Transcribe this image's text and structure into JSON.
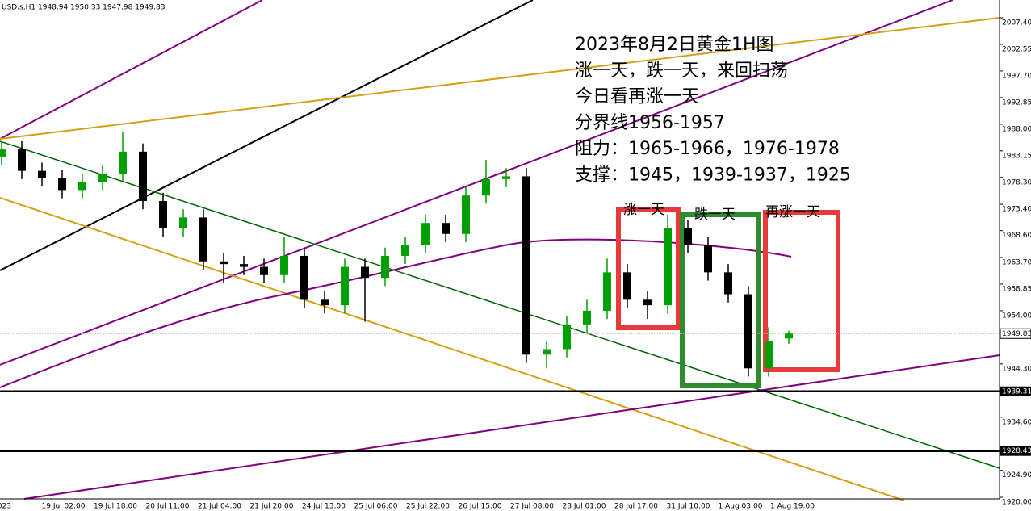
{
  "chart_data": {
    "type": "candlestick",
    "header": "USD.s,H1  1948.94 1950.33 1947.98 1949.83",
    "annotation": [
      "2023年8月2日黄金1H图",
      "涨一天，跌一天，来回扫荡",
      "今日看再涨一天",
      "分界线1956-1957",
      "阻力：1965-1966，1976-1978",
      "支撑：1945，1939-1937，1925"
    ],
    "box_labels": [
      "涨一天",
      "跌一天",
      "再涨一天"
    ],
    "xtick_labels": [
      "023",
      "19 Jul 02:00",
      "19 Jul 18:00",
      "20 Jul 11:00",
      "21 Jul 04:00",
      "21 Jul 20:00",
      "24 Jul 13:00",
      "25 Jul 06:00",
      "25 Jul 22:00",
      "26 Jul 15:00",
      "27 Jul 08:00",
      "28 Jul 01:00",
      "28 Jul 17:00",
      "31 Jul 10:00",
      "1 Aug 03:00",
      "1 Aug 19:00"
    ],
    "open": [
      1982,
      1983.4,
      1979.5,
      1978.2,
      1976,
      1977.5,
      1979,
      1983,
      1974,
      1969,
      1971,
      1963,
      1962.5,
      1962,
      1960.5,
      1964,
      1956,
      1955,
      1962,
      1960,
      1964,
      1966,
      1970,
      1968,
      1975,
      1978,
      1978.5,
      1946,
      1947,
      1951.5,
      1954,
      1961,
      1956,
      1955,
      1969,
      1966,
      1961,
      1957,
      1943.5,
      1948.94
    ],
    "high": [
      1984.9,
      1984.9,
      1981,
      1979.7,
      1979,
      1980.5,
      1986.5,
      1984.5,
      1975.5,
      1972.5,
      1972.5,
      1964.5,
      1964,
      1963.5,
      1967.5,
      1965.5,
      1957.5,
      1963.5,
      1963.5,
      1965.5,
      1967.5,
      1971.5,
      1971.5,
      1976.5,
      1981.5,
      1980,
      1980,
      1948.5,
      1953,
      1956,
      1963.5,
      1962.5,
      1957.5,
      1971.5,
      1970.5,
      1967.5,
      1962.5,
      1958.5,
      1951,
      1950.33
    ],
    "low": [
      1980.5,
      1978,
      1976.7,
      1974.5,
      1974.5,
      1976,
      1977.5,
      1972.5,
      1967.5,
      1967.5,
      1961.5,
      1959,
      1960.5,
      1959,
      1959,
      1954.5,
      1953.5,
      1953.5,
      1952,
      1958.5,
      1962.5,
      1964.5,
      1966.5,
      1966.5,
      1973.5,
      1976.5,
      1944.5,
      1943.5,
      1945.5,
      1950,
      1952.5,
      1954.5,
      1952.5,
      1953.5,
      1964.5,
      1959.5,
      1955.5,
      1942,
      1942,
      1947.98
    ],
    "close": [
      1983.4,
      1979.5,
      1978.2,
      1976,
      1977.5,
      1979,
      1983,
      1974,
      1969,
      1971,
      1963,
      1962.5,
      1962,
      1960.5,
      1964,
      1956,
      1955,
      1962,
      1960,
      1964,
      1966,
      1970,
      1968,
      1975,
      1978,
      1978.5,
      1946,
      1947,
      1951.5,
      1954,
      1961,
      1956,
      1955,
      1969,
      1966,
      1961,
      1957,
      1943.5,
      1948.5,
      1949.83
    ],
    "colors": {
      "up": "#00a000",
      "down": "#000000"
    },
    "ylim": [
      1919.41,
      2010.64
    ],
    "yticks": [
      {
        "value": 2007.4,
        "label": "2007.40"
      },
      {
        "value": 2002.55,
        "label": "2002.55"
      },
      {
        "value": 1997.7,
        "label": "1997.70"
      },
      {
        "value": 1992.85,
        "label": "1992.85"
      },
      {
        "value": 1988,
        "label": "1988.00"
      },
      {
        "value": 1983.15,
        "label": "1983.15"
      },
      {
        "value": 1978.3,
        "label": "1978.30"
      },
      {
        "value": 1973.4,
        "label": "1973.40"
      },
      {
        "value": 1968.6,
        "label": "1968.60"
      },
      {
        "value": 1963.7,
        "label": "1963.70"
      },
      {
        "value": 1958.85,
        "label": "1958.85"
      },
      {
        "value": 1954,
        "label": "1954.00"
      },
      {
        "value": 1944.3,
        "label": "1944.30"
      },
      {
        "value": 1934.6,
        "label": "1934.60"
      },
      {
        "value": 1924.9,
        "label": "1924.90"
      },
      {
        "value": 1920,
        "label": "1920.00"
      }
    ],
    "hlines": [
      {
        "value": 1939.31,
        "label": "1939.31"
      },
      {
        "value": 1928.43,
        "label": "1928.43"
      }
    ],
    "last": {
      "value": 1949.83,
      "label": "1949.83"
    }
  }
}
